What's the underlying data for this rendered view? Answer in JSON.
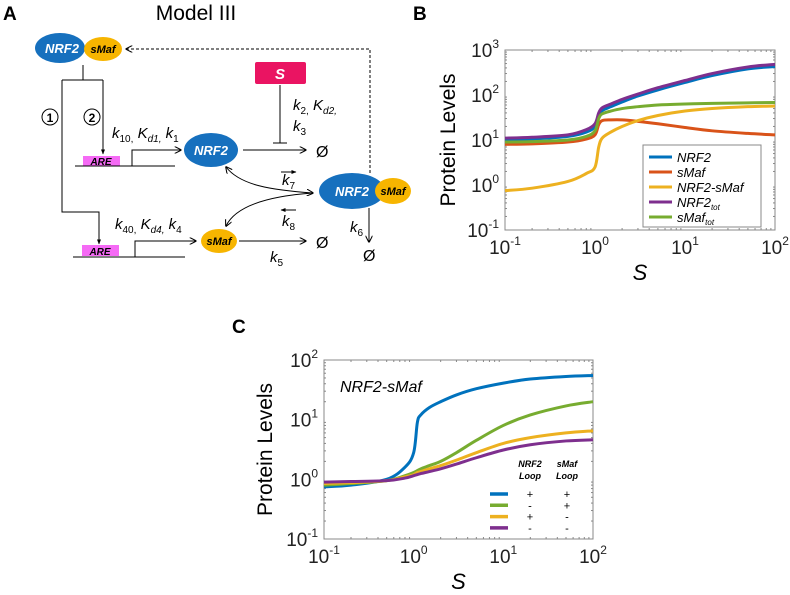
{
  "panel_labels": {
    "a": "A",
    "b": "B",
    "c": "C"
  },
  "diagram": {
    "title": "Model III",
    "nrf2": "NRF2",
    "smaf": "sMaf",
    "are": "ARE",
    "stimulus": "S",
    "loop1": "1",
    "loop2": "2",
    "null": "Ø",
    "colors": {
      "nrf2": "#1670be",
      "smaf": "#f7b500",
      "are": "#f56af5",
      "stimulus": "#ea1462"
    },
    "rates": {
      "k10": {
        "k": "k",
        "sub": "10,"
      },
      "kd1": {
        "k": "K",
        "sub": "d1,"
      },
      "k1": {
        "k": "k",
        "sub": "1"
      },
      "k2": {
        "k": "k",
        "sub": "2,"
      },
      "kd2": {
        "k": "K",
        "sub": "d2,"
      },
      "k3": {
        "k": "k",
        "sub": "3"
      },
      "k40": {
        "k": "k",
        "sub": "40,"
      },
      "kd4": {
        "k": "K",
        "sub": "d4,"
      },
      "k4": {
        "k": "k",
        "sub": "4"
      },
      "k5": {
        "k": "k",
        "sub": "5"
      },
      "k6": {
        "k": "k",
        "sub": "6"
      },
      "k7": {
        "k": "k",
        "sub": "7"
      },
      "k8": {
        "k": "k",
        "sub": "8"
      }
    }
  },
  "chart_data": [
    {
      "type": "line",
      "title": "",
      "xlabel": "S",
      "ylabel": "Protein Levels",
      "xscale": "log",
      "yscale": "log",
      "xlim": [
        0.1,
        100
      ],
      "ylim": [
        0.1,
        1000
      ],
      "xticks": [
        {
          "base": "10",
          "exp": "-1"
        },
        {
          "base": "10",
          "exp": "0"
        },
        {
          "base": "10",
          "exp": "1"
        },
        {
          "base": "10",
          "exp": "2"
        }
      ],
      "yticks": [
        {
          "base": "10",
          "exp": "-1"
        },
        {
          "base": "10",
          "exp": "0"
        },
        {
          "base": "10",
          "exp": "1"
        },
        {
          "base": "10",
          "exp": "2"
        },
        {
          "base": "10",
          "exp": "3"
        }
      ],
      "legend_position": "lower-right",
      "x": [
        0.1,
        0.2,
        0.5,
        0.8,
        1.0,
        1.1,
        1.2,
        1.5,
        2,
        3,
        5,
        10,
        20,
        50,
        100
      ],
      "series": [
        {
          "name": "NRF2",
          "sub": "",
          "color": "#0072bd",
          "values": [
            10,
            10.5,
            12,
            15,
            20,
            35,
            45,
            55,
            70,
            95,
            130,
            190,
            270,
            380,
            430
          ]
        },
        {
          "name": "sMaf",
          "sub": "",
          "color": "#d95319",
          "values": [
            8,
            8.2,
            9,
            10.5,
            13,
            22,
            27,
            28,
            28,
            26,
            23,
            19,
            16,
            14,
            13
          ]
        },
        {
          "name": "NRF2-sMaf",
          "sub": "",
          "color": "#edb120",
          "values": [
            0.75,
            0.85,
            1.2,
            1.8,
            2.5,
            7,
            11,
            15,
            20,
            27,
            35,
            44,
            50,
            55,
            57
          ]
        },
        {
          "name": "NRF2",
          "sub": "tot",
          "color": "#7e2f8e",
          "values": [
            11,
            11.5,
            13,
            17,
            23,
            40,
            52,
            63,
            80,
            105,
            145,
            210,
            300,
            420,
            480
          ]
        },
        {
          "name": "sMaf",
          "sub": "tot",
          "color": "#77ac30",
          "values": [
            9,
            9.2,
            10,
            12,
            16,
            30,
            38,
            44,
            50,
            55,
            60,
            63,
            65,
            67,
            68
          ]
        }
      ]
    },
    {
      "type": "line",
      "title": "",
      "annotation": "NRF2-sMaf",
      "xlabel": "S",
      "ylabel": "Protein Levels",
      "xscale": "log",
      "yscale": "log",
      "xlim": [
        0.1,
        100
      ],
      "ylim": [
        0.1,
        100
      ],
      "xticks": [
        {
          "base": "10",
          "exp": "-1"
        },
        {
          "base": "10",
          "exp": "0"
        },
        {
          "base": "10",
          "exp": "1"
        },
        {
          "base": "10",
          "exp": "2"
        }
      ],
      "yticks": [
        {
          "base": "10",
          "exp": "-1"
        },
        {
          "base": "10",
          "exp": "0"
        },
        {
          "base": "10",
          "exp": "1"
        },
        {
          "base": "10",
          "exp": "2"
        }
      ],
      "legend_position": "lower-right",
      "legend_headers": [
        [
          "NRF2",
          "Loop"
        ],
        [
          "sMaf",
          "Loop"
        ]
      ],
      "x": [
        0.1,
        0.2,
        0.5,
        0.8,
        1.0,
        1.1,
        1.2,
        1.5,
        2,
        3,
        5,
        10,
        20,
        50,
        100
      ],
      "series": [
        {
          "name": "NRF2 loop + / sMaf loop +",
          "nrf2_loop": "+",
          "smaf_loop": "+",
          "color": "#0072bd",
          "values": [
            0.75,
            0.8,
            1.0,
            1.6,
            2.8,
            9,
            12,
            16,
            20,
            26,
            33,
            41,
            48,
            53,
            55
          ]
        },
        {
          "name": "NRF2 loop - / sMaf loop +",
          "nrf2_loop": "-",
          "smaf_loop": "+",
          "color": "#77ac30",
          "values": [
            0.8,
            0.85,
            0.95,
            1.15,
            1.3,
            1.4,
            1.5,
            1.7,
            2.0,
            2.8,
            4.5,
            8,
            12,
            17,
            20
          ]
        },
        {
          "name": "NRF2 loop + / sMaf loop -",
          "nrf2_loop": "+",
          "smaf_loop": "-",
          "color": "#edb120",
          "values": [
            0.85,
            0.88,
            0.95,
            1.1,
            1.2,
            1.3,
            1.35,
            1.5,
            1.7,
            2.1,
            2.8,
            4,
            5,
            6,
            6.5
          ]
        },
        {
          "name": "NRF2 loop - / sMaf loop -",
          "nrf2_loop": "-",
          "smaf_loop": "-",
          "color": "#7e2f8e",
          "values": [
            0.9,
            0.92,
            0.95,
            1.05,
            1.15,
            1.2,
            1.25,
            1.35,
            1.5,
            1.8,
            2.3,
            3.1,
            3.8,
            4.4,
            4.6
          ]
        }
      ]
    }
  ]
}
